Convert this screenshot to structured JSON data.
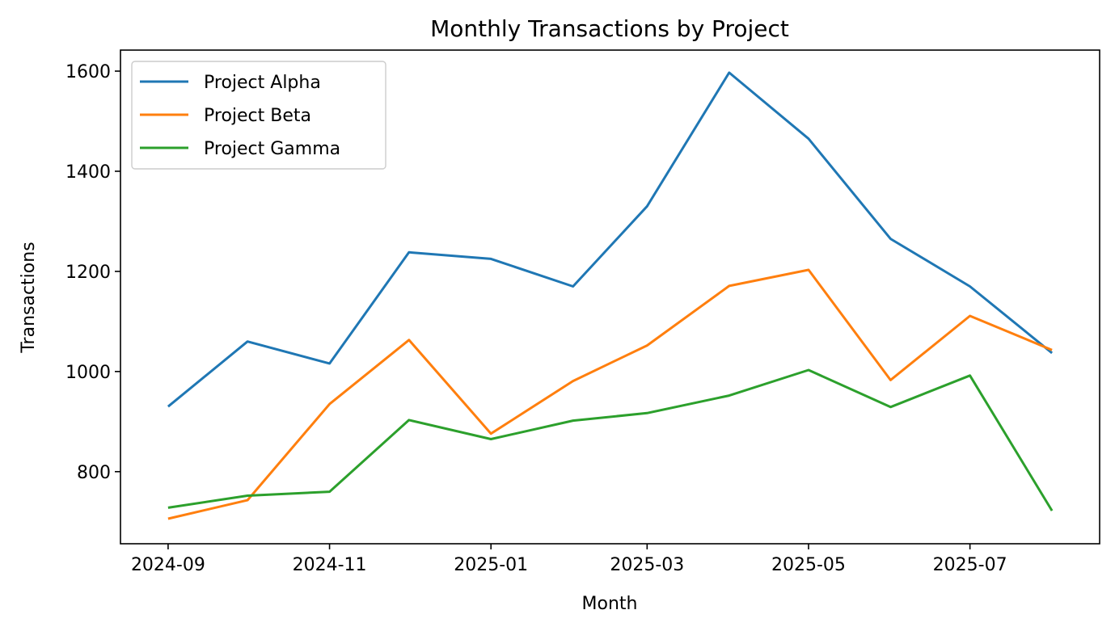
{
  "chart_data": {
    "type": "line",
    "title": "Monthly Transactions by Project",
    "xlabel": "Month",
    "ylabel": "Transactions",
    "x": [
      "2024-09-01",
      "2024-10-01",
      "2024-11-01",
      "2024-12-01",
      "2025-01-01",
      "2025-02-01",
      "2025-03-01",
      "2025-04-01",
      "2025-05-01",
      "2025-06-01",
      "2025-07-01",
      "2025-08-01"
    ],
    "xticks": [
      "2024-09",
      "2024-11",
      "2025-01",
      "2025-03",
      "2025-05",
      "2025-07"
    ],
    "xlim": [
      "2024-08-14",
      "2025-08-19"
    ],
    "yticks": [
      800,
      1000,
      1200,
      1400,
      1600
    ],
    "ylim": [
      656,
      1642
    ],
    "grid": false,
    "legend_position": "top-left",
    "series": [
      {
        "name": "Project Alpha",
        "color": "#1f77b4",
        "values": [
          930,
          1060,
          1016,
          1238,
          1225,
          1170,
          1330,
          1597,
          1465,
          1265,
          1170,
          1037
        ]
      },
      {
        "name": "Project Beta",
        "color": "#ff7f0e",
        "values": [
          706,
          743,
          935,
          1063,
          876,
          981,
          1052,
          1171,
          1203,
          983,
          1111,
          1043
        ]
      },
      {
        "name": "Project Gamma",
        "color": "#2ca02c",
        "values": [
          728,
          752,
          760,
          903,
          865,
          902,
          917,
          952,
          1003,
          929,
          992,
          722
        ]
      }
    ]
  }
}
